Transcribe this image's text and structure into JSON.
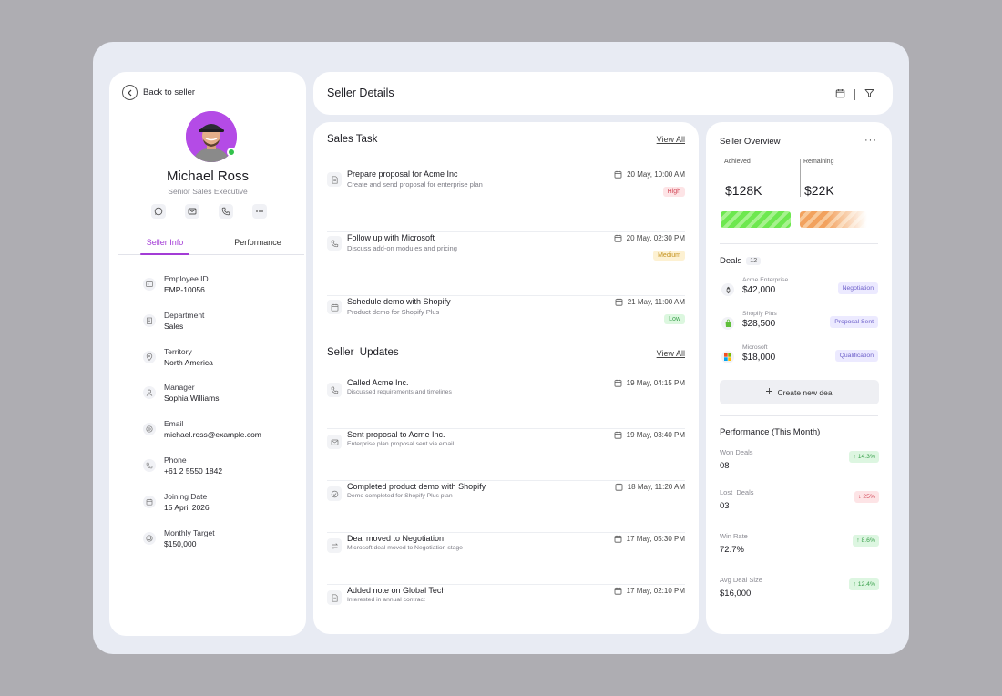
{
  "profile": {
    "back_label": "Back to seller",
    "name": "Michael Ross",
    "role": "Senior Sales Executive",
    "status": "online",
    "contact_actions": [
      "chat-icon",
      "mail-icon",
      "phone-icon",
      "more-icon"
    ],
    "tabs": [
      {
        "label": "Seller Info",
        "active": true
      },
      {
        "label": "Performance",
        "active": false
      }
    ],
    "info": [
      {
        "icon": "id-card-icon",
        "label": "Employee ID",
        "value": "EMP-10056"
      },
      {
        "icon": "building-icon",
        "label": "Department",
        "value": "Sales"
      },
      {
        "icon": "location-icon",
        "label": "Territory",
        "value": "North America"
      },
      {
        "icon": "user-icon",
        "label": "Manager",
        "value": "Sophia Williams"
      },
      {
        "icon": "at-icon",
        "label": "Email",
        "value": "michael.ross@example.com"
      },
      {
        "icon": "phone-icon",
        "label": "Phone",
        "value": "+61 2 5550 1842"
      },
      {
        "icon": "calendar-icon",
        "label": "Joining Date",
        "value": "15 April 2026"
      },
      {
        "icon": "target-icon",
        "label": "Monthly Target",
        "value": "$150,000"
      }
    ]
  },
  "header": {
    "title": "Seller Details",
    "icons": [
      "calendar-icon",
      "filter-icon"
    ]
  },
  "sales_task": {
    "title": "Sales Task",
    "view_all": "View All",
    "items": [
      {
        "icon": "document-icon",
        "title": "Prepare proposal for Acme Inc",
        "desc": "Create and send proposal for enterprise plan",
        "date": "20 May, 10:00 AM",
        "priority": "High"
      },
      {
        "icon": "phone-icon",
        "title": "Follow up with Microsoft",
        "desc": "Discuss add-on modules and pricing",
        "date": "20 May, 02:30 PM",
        "priority": "Medium"
      },
      {
        "icon": "calendar-icon",
        "title": "Schedule demo with Shopify",
        "desc": "Product demo for Shopify Plus",
        "date": "21 May, 11:00 AM",
        "priority": "Low"
      }
    ]
  },
  "seller_updates": {
    "title": "Seller  Updates",
    "view_all": "View All",
    "items": [
      {
        "icon": "phone-icon",
        "title": "Called Acme Inc.",
        "desc": "Discussed requirements and timelines",
        "date": "19 May, 04:15 PM"
      },
      {
        "icon": "mail-icon",
        "title": "Sent proposal to Acme Inc.",
        "desc": "Enterprise plan proposal sent via email",
        "date": "19 May, 03:40 PM"
      },
      {
        "icon": "check-circle-icon",
        "title": "Completed product demo with Shopify",
        "desc": "Demo completed for Shopify Plus plan",
        "date": "18 May, 11:20 AM"
      },
      {
        "icon": "swap-icon",
        "title": "Deal moved to Negotiation",
        "desc": "Microsoft deal moved to Negotiation stage",
        "date": "17 May, 05:30 PM"
      },
      {
        "icon": "note-icon",
        "title": "Added note on Global Tech",
        "desc": "Interested in annual contract",
        "date": "17 May, 02:10 PM"
      }
    ]
  },
  "overview": {
    "title": "Seller Overview",
    "achieved_label": "Achieved",
    "achieved_value": "$128K",
    "remaining_label": "Remaining",
    "remaining_value": "$22K",
    "colors": {
      "achieved": "#6de84f",
      "remaining": "#f2a25e"
    }
  },
  "deals": {
    "title": "Deals",
    "count": "12",
    "items": [
      {
        "logo": "acme-logo-icon",
        "name": "Acme Enterprise",
        "amount": "$42,000",
        "stage": "Negotiation"
      },
      {
        "logo": "shopify-logo-icon",
        "name": "Shopify Plus",
        "amount": "$28,500",
        "stage": "Proposal Sent"
      },
      {
        "logo": "microsoft-logo-icon",
        "name": "Microsoft",
        "amount": "$18,000",
        "stage": "Qualification"
      }
    ],
    "create_label": "Create new deal"
  },
  "performance": {
    "title": "Performance (This Month)",
    "metrics": [
      {
        "label": "Won Deals",
        "value": "08",
        "change": "14.3%",
        "direction": "up"
      },
      {
        "label": "Lost  Deals",
        "value": "03",
        "change": "25%",
        "direction": "down"
      },
      {
        "label": "Win Rate",
        "value": "72.7%",
        "change": "8.6%",
        "direction": "up"
      },
      {
        "label": "Avg Deal Size",
        "value": "$16,000",
        "change": "12.4%",
        "direction": "up"
      }
    ]
  }
}
